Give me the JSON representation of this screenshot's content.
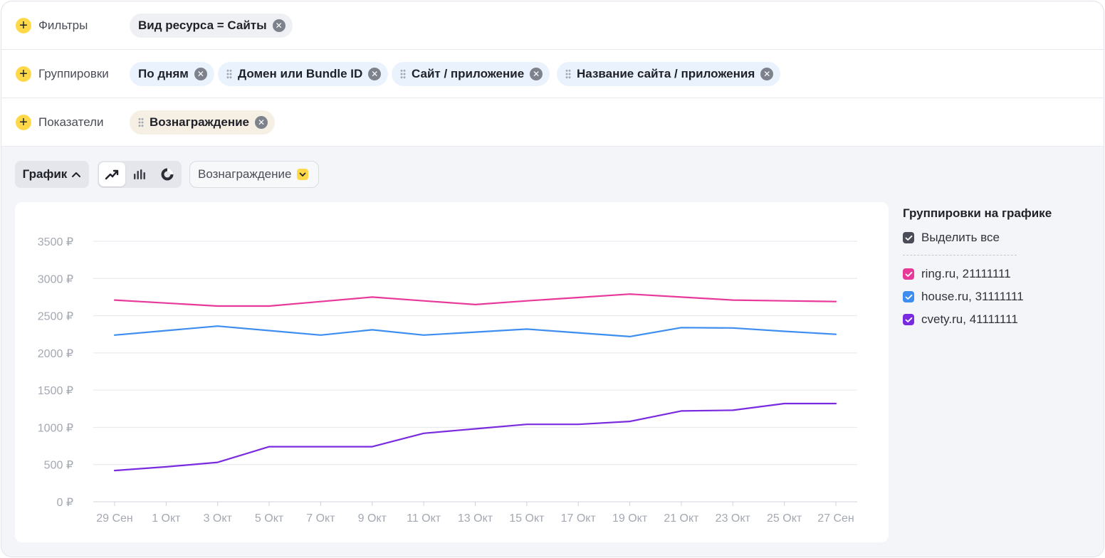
{
  "filters": {
    "label": "Фильтры",
    "chips": [
      {
        "text": "Вид ресурса = Сайты"
      }
    ]
  },
  "groupings": {
    "label": "Группировки",
    "chips": [
      {
        "text": "По дням"
      },
      {
        "text": "Домен или Bundle ID"
      },
      {
        "text": "Сайт / приложение"
      },
      {
        "text": "Название сайта / приложения"
      }
    ]
  },
  "metrics": {
    "label": "Показатели",
    "chips": [
      {
        "text": "Вознаграждение"
      }
    ]
  },
  "toolbar": {
    "view_label": "График",
    "chart_types": [
      "line-chart-icon",
      "bar-chart-icon",
      "pie-chart-icon"
    ],
    "active_chart_type": "line",
    "metric_select_label": "Вознаграждение"
  },
  "legend": {
    "title": "Группировки на графике",
    "select_all": "Выделить все",
    "items": [
      {
        "label": "ring.ru, 21111111",
        "color": "#e8399a"
      },
      {
        "label": "house.ru, 31111111",
        "color": "#3d8ef0"
      },
      {
        "label": "cvety.ru, 41111111",
        "color": "#7a2be0"
      }
    ]
  },
  "chart_data": {
    "type": "line",
    "title": "",
    "xlabel": "",
    "ylabel": "",
    "ylim": [
      0,
      3500
    ],
    "y_ticks": [
      "0 ₽",
      "500 ₽",
      "1000 ₽",
      "1500 ₽",
      "2000 ₽",
      "2500 ₽",
      "3000 ₽",
      "3500 ₽"
    ],
    "grid": true,
    "x": [
      "29 Сен",
      "1 Окт",
      "3 Окт",
      "5 Окт",
      "7 Окт",
      "9 Окт",
      "11 Окт",
      "13 Окт",
      "15 Окт",
      "17 Окт",
      "19 Окт",
      "21 Окт",
      "23 Окт",
      "25 Окт",
      "27 Сен"
    ],
    "series": [
      {
        "name": "ring.ru, 21111111",
        "color": "#e8399a",
        "values": [
          2710,
          2670,
          2630,
          2630,
          2690,
          2750,
          2700,
          2650,
          2700,
          2745,
          2790,
          2750,
          2710,
          2700,
          2690
        ]
      },
      {
        "name": "house.ru, 31111111",
        "color": "#3d8ef0",
        "values": [
          2240,
          2300,
          2360,
          2300,
          2240,
          2310,
          2240,
          2280,
          2320,
          2270,
          2220,
          2340,
          2335,
          2290,
          2250
        ]
      },
      {
        "name": "cvety.ru, 41111111",
        "color": "#7a2be0",
        "values": [
          420,
          470,
          530,
          740,
          740,
          740,
          920,
          980,
          1040,
          1040,
          1080,
          1220,
          1230,
          1320,
          1320
        ]
      }
    ]
  }
}
